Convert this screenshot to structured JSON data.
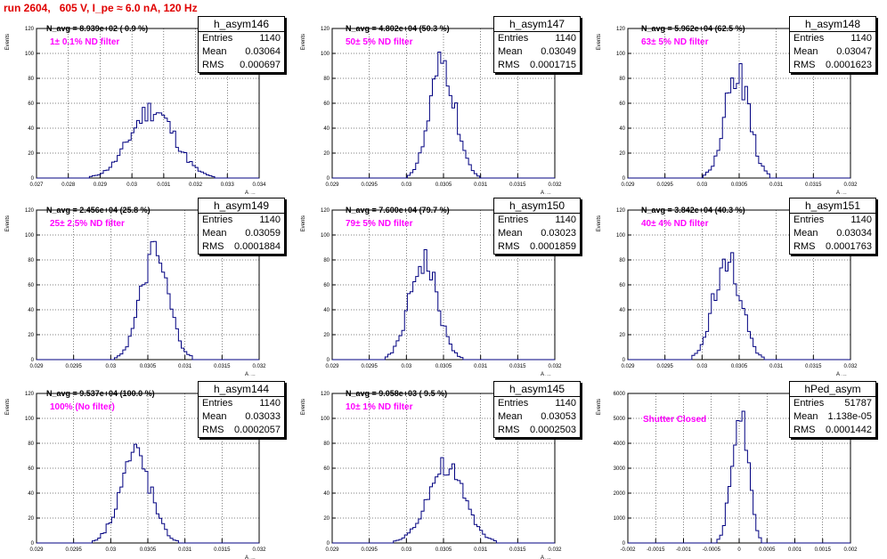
{
  "title": "run 2604,   605 V, I_pe ≈ 6.0 nA, 120 Hz",
  "colors": {
    "title": "#e00000",
    "histogram": "#000080",
    "annotation": "#ff00ff"
  },
  "chart_data": [
    {
      "type": "histogram",
      "name": "h_asym146",
      "entries": "1140",
      "mean": "0.03064",
      "rms": "0.000697",
      "navg_text": "N_avg = 8.939e+02 ( 0.9 %)",
      "filter_text": "1± 0.1% ND filter",
      "xlim": [
        0.027,
        0.034
      ],
      "ylim": [
        0,
        120
      ],
      "xticks": [
        "0.027",
        "0.028",
        "0.029",
        "0.03",
        "0.031",
        "0.032",
        "0.033",
        "0.034"
      ],
      "yticks": [
        "0",
        "20",
        "40",
        "60",
        "80",
        "100",
        "120"
      ],
      "ylabel": "Events",
      "xlabel": "A_UID",
      "grid": true,
      "peak": {
        "center": 0.03064,
        "sigma": 0.000697,
        "height": 55
      }
    },
    {
      "type": "histogram",
      "name": "h_asym147",
      "entries": "1140",
      "mean": "0.03049",
      "rms": "0.0001715",
      "navg_text": "N_avg = 4.802e+04 (50.3 %)",
      "filter_text": "50± 5% ND filter",
      "xlim": [
        0.029,
        0.032
      ],
      "ylim": [
        0,
        120
      ],
      "xticks": [
        "0.029",
        "0.0295",
        "0.03",
        "0.0305",
        "0.031",
        "0.0315",
        "0.032"
      ],
      "yticks": [
        "0",
        "20",
        "40",
        "60",
        "80",
        "100",
        "120"
      ],
      "ylabel": "Events",
      "xlabel": "A_UID",
      "grid": true,
      "peak": {
        "center": 0.03049,
        "sigma": 0.0001715,
        "height": 90
      }
    },
    {
      "type": "histogram",
      "name": "h_asym148",
      "entries": "1140",
      "mean": "0.03047",
      "rms": "0.0001623",
      "navg_text": "N_avg = 5.962e+04 (62.5 %)",
      "filter_text": "63± 5% ND filter",
      "xlim": [
        0.029,
        0.032
      ],
      "ylim": [
        0,
        120
      ],
      "xticks": [
        "0.029",
        "0.0295",
        "0.03",
        "0.0305",
        "0.031",
        "0.0315",
        "0.032"
      ],
      "yticks": [
        "0",
        "20",
        "40",
        "60",
        "80",
        "100",
        "120"
      ],
      "ylabel": "Events",
      "xlabel": "A_UID",
      "grid": true,
      "peak": {
        "center": 0.03047,
        "sigma": 0.0001623,
        "height": 86
      }
    },
    {
      "type": "histogram",
      "name": "h_asym149",
      "entries": "1140",
      "mean": "0.03059",
      "rms": "0.0001884",
      "navg_text": "N_avg = 2.456e+04 (25.8 %)",
      "filter_text": "25± 2.5% ND filter",
      "xlim": [
        0.029,
        0.032
      ],
      "ylim": [
        0,
        120
      ],
      "xticks": [
        "0.029",
        "0.0295",
        "0.03",
        "0.0305",
        "0.031",
        "0.0315",
        "0.032"
      ],
      "yticks": [
        "0",
        "20",
        "40",
        "60",
        "80",
        "100",
        "120"
      ],
      "ylabel": "Events",
      "xlabel": "A_UID",
      "grid": true,
      "peak": {
        "center": 0.03059,
        "sigma": 0.0001884,
        "height": 82
      }
    },
    {
      "type": "histogram",
      "name": "h_asym150",
      "entries": "1140",
      "mean": "0.03023",
      "rms": "0.0001859",
      "navg_text": "N_avg = 7.600e+04 (79.7 %)",
      "filter_text": "79± 5% ND filter",
      "xlim": [
        0.029,
        0.032
      ],
      "ylim": [
        0,
        120
      ],
      "xticks": [
        "0.029",
        "0.0295",
        "0.03",
        "0.0305",
        "0.031",
        "0.0315",
        "0.032"
      ],
      "yticks": [
        "0",
        "20",
        "40",
        "60",
        "80",
        "100",
        "120"
      ],
      "ylabel": "Events",
      "xlabel": "A_UID",
      "grid": true,
      "peak": {
        "center": 0.03023,
        "sigma": 0.0001859,
        "height": 80
      }
    },
    {
      "type": "histogram",
      "name": "h_asym151",
      "entries": "1140",
      "mean": "0.03034",
      "rms": "0.0001763",
      "navg_text": "N_avg = 3.842e+04 (40.3 %)",
      "filter_text": "40± 4% ND filter",
      "xlim": [
        0.029,
        0.032
      ],
      "ylim": [
        0,
        120
      ],
      "xticks": [
        "0.029",
        "0.0295",
        "0.03",
        "0.0305",
        "0.031",
        "0.0315",
        "0.032"
      ],
      "yticks": [
        "0",
        "20",
        "40",
        "60",
        "80",
        "100",
        "120"
      ],
      "ylabel": "Events",
      "xlabel": "A_UID",
      "grid": true,
      "peak": {
        "center": 0.03034,
        "sigma": 0.0001763,
        "height": 86
      }
    },
    {
      "type": "histogram",
      "name": "h_asym144",
      "entries": "1140",
      "mean": "0.03033",
      "rms": "0.0002057",
      "navg_text": "N_avg = 9.537e+04 (100.0 %)",
      "filter_text": "100% (No filter)",
      "xlim": [
        0.029,
        0.032
      ],
      "ylim": [
        0,
        120
      ],
      "xticks": [
        "0.029",
        "0.0295",
        "0.03",
        "0.0305",
        "0.031",
        "0.0315",
        "0.032"
      ],
      "yticks": [
        "0",
        "20",
        "40",
        "60",
        "80",
        "100",
        "120"
      ],
      "ylabel": "Events",
      "xlabel": "A_UID",
      "grid": true,
      "peak": {
        "center": 0.03033,
        "sigma": 0.0002057,
        "height": 72
      }
    },
    {
      "type": "histogram",
      "name": "h_asym145",
      "entries": "1140",
      "mean": "0.03053",
      "rms": "0.0002503",
      "navg_text": "N_avg = 9.058e+03 ( 9.5 %)",
      "filter_text": "10± 1% ND filter",
      "xlim": [
        0.029,
        0.032
      ],
      "ylim": [
        0,
        120
      ],
      "xticks": [
        "0.029",
        "0.0295",
        "0.03",
        "0.0305",
        "0.031",
        "0.0315",
        "0.032"
      ],
      "yticks": [
        "0",
        "20",
        "40",
        "60",
        "80",
        "100",
        "120"
      ],
      "ylabel": "Events",
      "xlabel": "A_UID",
      "grid": true,
      "peak": {
        "center": 0.03053,
        "sigma": 0.0002503,
        "height": 60
      }
    },
    {
      "type": "histogram",
      "name": "hPed_asym",
      "entries": "51787",
      "mean": "1.138e-05",
      "rms": "0.0001442",
      "navg_text": "",
      "filter_text": "Shutter Closed",
      "xlim": [
        -0.002,
        0.002
      ],
      "ylim": [
        0,
        6000
      ],
      "xticks": [
        "-0.002",
        "-0.0015",
        "-0.001",
        "-0.0005",
        "0",
        "0.0005",
        "0.001",
        "0.0015",
        "0.002"
      ],
      "yticks": [
        "0",
        "1000",
        "2000",
        "3000",
        "4000",
        "5000",
        "6000"
      ],
      "ylabel": "Events",
      "xlabel": "",
      "grid": true,
      "peak": {
        "center": 1.138e-05,
        "sigma": 0.0001442,
        "height": 5600
      }
    }
  ]
}
